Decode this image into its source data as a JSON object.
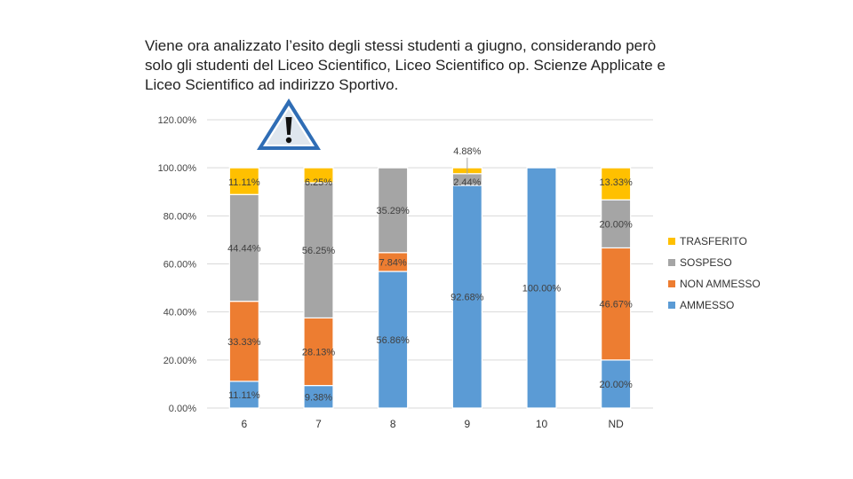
{
  "slide": {
    "title_lines": [
      "Viene ora analizzato l’esito degli stessi studenti a giugno, considerando però",
      "solo gli studenti del Liceo Scientifico, Liceo Scientifico op. Scienze Applicate e",
      "Liceo Scientifico ad indirizzo Sportivo."
    ],
    "icon": "warning-triangle-icon"
  },
  "chart_data": {
    "type": "bar",
    "stacked": true,
    "percent_axis": true,
    "categories": [
      "6",
      "7",
      "8",
      "9",
      "10",
      "ND"
    ],
    "y_ticks": [
      "0.00%",
      "20.00%",
      "40.00%",
      "60.00%",
      "80.00%",
      "100.00%",
      "120.00%"
    ],
    "ylim": [
      0,
      120
    ],
    "grid": true,
    "legend_position": "right",
    "series": [
      {
        "name": "AMMESSO",
        "color": "#5b9bd5",
        "values": [
          11.11,
          9.38,
          56.86,
          92.68,
          100.0,
          20.0
        ],
        "labels": [
          "11.11%",
          "9.38%",
          "56.86%",
          "92.68%",
          "100.00%",
          "20.00%"
        ]
      },
      {
        "name": "NON AMMESSO",
        "color": "#ed7d31",
        "values": [
          33.33,
          28.13,
          7.84,
          0,
          0,
          46.67
        ],
        "labels": [
          "33.33%",
          "28.13%",
          "7.84%",
          "",
          "",
          "46.67%"
        ]
      },
      {
        "name": "SOSPESO",
        "color": "#a5a5a5",
        "values": [
          44.44,
          56.25,
          35.29,
          4.88,
          0,
          20.0
        ],
        "labels": [
          "44.44%",
          "56.25%",
          "35.29%",
          "4.88%",
          "",
          "20.00%"
        ]
      },
      {
        "name": "TRASFERITO",
        "color": "#ffc000",
        "values": [
          11.11,
          6.25,
          0,
          2.44,
          0,
          13.33
        ],
        "labels": [
          "11.11%",
          "6.25%",
          "",
          "2.44%",
          "",
          "13.33%"
        ]
      }
    ]
  }
}
